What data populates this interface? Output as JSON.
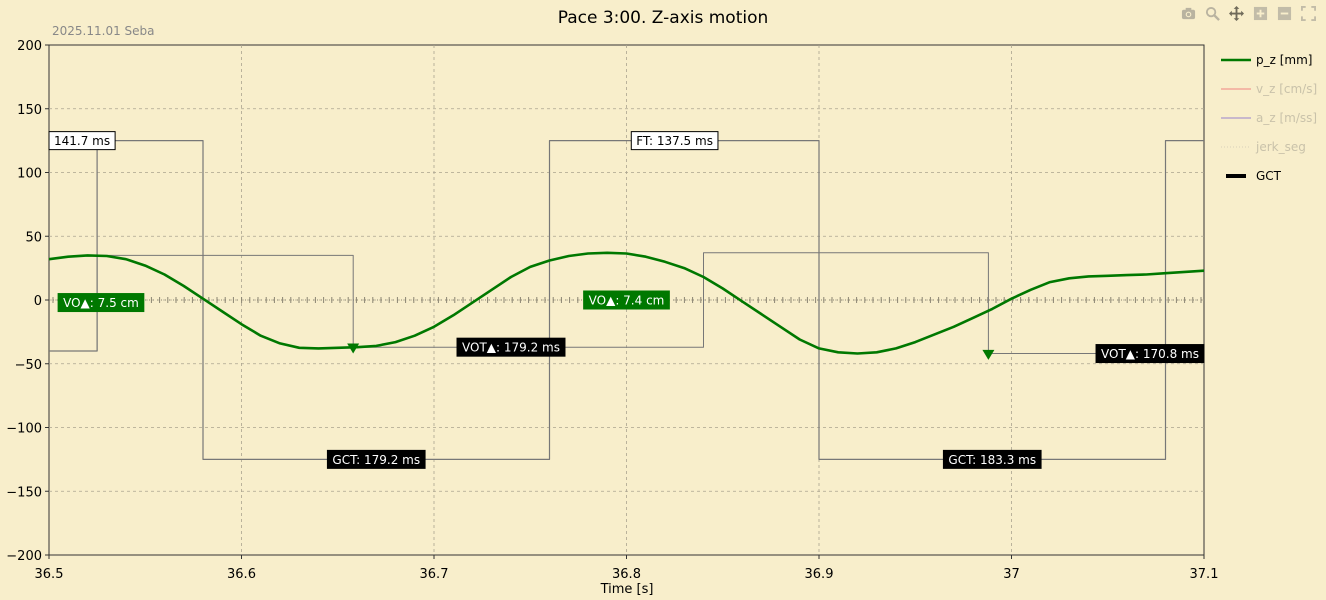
{
  "toolbar": {
    "icons": [
      "camera-icon",
      "zoom-icon",
      "pan-icon",
      "zoom-in-icon",
      "zoom-out-icon",
      "autoscale-icon"
    ]
  },
  "colors": {
    "background": "#f8eecb",
    "p_z": "#007800",
    "v_z": "#f4b9a6",
    "a_z": "#c8b8cc",
    "jerk_seg": "#d8d0b8",
    "gct": "#000000",
    "gct_line": "#777777",
    "label_dark": "#000000",
    "label_green": "#007800"
  },
  "chart_data": {
    "type": "line",
    "title": "Pace 3:00. Z-axis motion",
    "subtitle": "2025.11.01 Seba",
    "xlabel": "Time [s]",
    "ylabel": "",
    "xlim": [
      36.5,
      37.1
    ],
    "ylim": [
      -200,
      200
    ],
    "xticks": [
      36.5,
      36.6,
      36.7,
      36.8,
      36.9,
      37.0,
      37.1
    ],
    "xtick_labels": [
      "36.5",
      "36.6",
      "36.7",
      "36.8",
      "36.9",
      "37",
      "37.1"
    ],
    "yticks": [
      -200,
      -150,
      -100,
      -50,
      0,
      50,
      100,
      150,
      200
    ],
    "ytick_labels": [
      "−200",
      "−150",
      "−100",
      "−50",
      "0",
      "50",
      "100",
      "150",
      "200"
    ],
    "grid": true,
    "legend_position": "right",
    "legend": [
      {
        "name": "p_z [mm]",
        "style": "line",
        "active": true
      },
      {
        "name": "v_z [cm/s]",
        "style": "line",
        "active": false
      },
      {
        "name": "a_z [m/ss]",
        "style": "line",
        "active": false
      },
      {
        "name": "jerk_seg",
        "style": "dotted",
        "active": false
      },
      {
        "name": "GCT",
        "style": "thick",
        "active": true
      }
    ],
    "series": [
      {
        "name": "p_z [mm]",
        "x": [
          36.5,
          36.51,
          36.52,
          36.53,
          36.54,
          36.55,
          36.56,
          36.57,
          36.58,
          36.59,
          36.6,
          36.61,
          36.62,
          36.63,
          36.64,
          36.65,
          36.66,
          36.67,
          36.68,
          36.69,
          36.7,
          36.71,
          36.72,
          36.73,
          36.74,
          36.75,
          36.76,
          36.77,
          36.78,
          36.79,
          36.8,
          36.81,
          36.82,
          36.83,
          36.84,
          36.85,
          36.86,
          36.87,
          36.88,
          36.89,
          36.9,
          36.91,
          36.92,
          36.93,
          36.94,
          36.95,
          36.96,
          36.97,
          36.98,
          36.99,
          37.0,
          37.01,
          37.02,
          37.03,
          37.04,
          37.05,
          37.06,
          37.07,
          37.08,
          37.09,
          37.1
        ],
        "y": [
          32,
          34,
          35,
          34.5,
          32,
          27,
          20,
          11,
          1,
          -9,
          -19,
          -28,
          -34,
          -37.5,
          -38,
          -37.5,
          -37,
          -36,
          -33,
          -28,
          -21,
          -12,
          -2,
          8,
          18,
          26,
          31,
          34.5,
          36.5,
          37,
          36.5,
          34,
          30,
          25,
          18,
          9,
          -1,
          -11,
          -21,
          -31,
          -38,
          -41,
          -42,
          -41,
          -38,
          -33,
          -27,
          -21,
          -14,
          -7,
          1,
          8,
          14,
          17,
          18.5,
          19,
          19.5,
          20,
          21,
          22,
          23
        ]
      },
      {
        "name": "GCT",
        "x": [
          36.5,
          36.525,
          36.525,
          36.58,
          36.58,
          36.76,
          36.76,
          36.9,
          36.9,
          37.08,
          37.08,
          37.1
        ],
        "y": [
          -40,
          -40,
          125,
          125,
          -125,
          -125,
          125,
          125,
          -125,
          -125,
          125,
          125
        ]
      },
      {
        "name": "VOT",
        "x": [
          36.5,
          36.525,
          36.525,
          36.658,
          36.658,
          36.84,
          36.84,
          36.988,
          36.988,
          37.1
        ],
        "y": [
          -40,
          -40,
          35,
          35,
          -37,
          -37,
          37,
          37,
          -42,
          -42
        ]
      }
    ],
    "markers": [
      {
        "x": 36.658,
        "y": -38,
        "shape": "triangle-down"
      },
      {
        "x": 36.988,
        "y": -43,
        "shape": "triangle-down"
      }
    ],
    "annotations": [
      {
        "text": "141.7 ms",
        "x": 36.517,
        "y": 125,
        "style": "white"
      },
      {
        "text": "FT: 137.5 ms",
        "x": 36.825,
        "y": 125,
        "style": "white"
      },
      {
        "text": "VO▲: 7.5 cm",
        "x": 36.527,
        "y": -2,
        "style": "green"
      },
      {
        "text": "VO▲: 7.4 cm",
        "x": 36.8,
        "y": 0,
        "style": "green"
      },
      {
        "text": "VOT▲: 179.2 ms",
        "x": 36.74,
        "y": -37,
        "style": "dark"
      },
      {
        "text": "VOT▲: 170.8 ms",
        "x": 37.085,
        "y": -42,
        "style": "dark"
      },
      {
        "text": "GCT: 179.2 ms",
        "x": 36.67,
        "y": -125,
        "style": "dark"
      },
      {
        "text": "GCT: 183.3 ms",
        "x": 36.99,
        "y": -125,
        "style": "dark"
      }
    ]
  }
}
